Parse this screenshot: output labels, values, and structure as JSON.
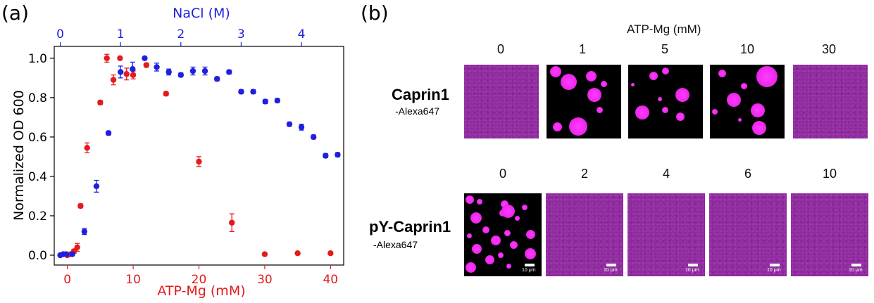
{
  "panel_a_label": "(a)",
  "panel_b_label": "(b)",
  "chart_data": {
    "type": "scatter",
    "title": "",
    "ylabel": "Normalized OD 600",
    "xlabel_bottom": "ATP-Mg (mM)",
    "xlabel_top": "NaCl (M)",
    "xlim_bottom": [
      -2,
      42
    ],
    "xlim_top": [
      -0.1,
      4.7
    ],
    "ylim": [
      -0.05,
      1.06
    ],
    "x_ticks_bottom": [
      0,
      10,
      20,
      30,
      40
    ],
    "x_ticks_top": [
      0,
      1,
      2,
      3,
      4
    ],
    "y_ticks": [
      0.0,
      0.2,
      0.4,
      0.6,
      0.8,
      1.0
    ],
    "y_tick_labels": [
      "0.0",
      "0.2",
      "0.4",
      "0.6",
      "0.8",
      "1.0"
    ],
    "grid": false,
    "series": [
      {
        "name": "ATP-Mg",
        "axis": "bottom",
        "color": "#e41a1c",
        "x": [
          0,
          0.5,
          1,
          1.5,
          2,
          3,
          5,
          6,
          7,
          8,
          9,
          10,
          12,
          15,
          20,
          25,
          30,
          35,
          40
        ],
        "y": [
          0.0,
          0.005,
          0.02,
          0.04,
          0.25,
          0.545,
          0.775,
          1.0,
          0.89,
          1.0,
          0.92,
          0.915,
          0.965,
          0.82,
          0.475,
          0.165,
          0.005,
          0.01,
          0.01
        ],
        "err": [
          0.005,
          0.005,
          0.01,
          0.02,
          0.01,
          0.025,
          0.01,
          0.02,
          0.025,
          0.005,
          0.03,
          0.02,
          0.01,
          0.01,
          0.025,
          0.045,
          0.005,
          0.005,
          0.005
        ]
      },
      {
        "name": "NaCl",
        "axis": "top",
        "color": "#1f1fe0",
        "x": [
          0,
          0.05,
          0.1,
          0.2,
          0.4,
          0.6,
          0.8,
          1.0,
          1.2,
          1.4,
          1.6,
          1.8,
          2.0,
          2.2,
          2.4,
          2.6,
          2.8,
          3.0,
          3.2,
          3.4,
          3.6,
          3.8,
          4.0,
          4.2,
          4.4,
          4.6
        ],
        "y": [
          0.0,
          0.005,
          0.005,
          0.005,
          0.12,
          0.35,
          0.62,
          0.93,
          0.945,
          1.0,
          0.955,
          0.93,
          0.915,
          0.935,
          0.935,
          0.895,
          0.93,
          0.83,
          0.83,
          0.78,
          0.785,
          0.665,
          0.65,
          0.6,
          0.505,
          0.51
        ],
        "err": [
          0.005,
          0.005,
          0.005,
          0.005,
          0.015,
          0.03,
          0.01,
          0.03,
          0.035,
          0.005,
          0.02,
          0.015,
          0.01,
          0.02,
          0.02,
          0.01,
          0.01,
          0.01,
          0.01,
          0.01,
          0.01,
          0.01,
          0.015,
          0.01,
          0.01,
          0.01
        ]
      }
    ]
  },
  "panel_b": {
    "title": "ATP-Mg (mM)",
    "row1": {
      "label": "Caprin1",
      "sub": "-Alexa647",
      "concentrations": [
        "0",
        "1",
        "5",
        "10",
        "30"
      ]
    },
    "row2": {
      "label": "pY-Caprin1",
      "sub": "-Alexa647",
      "concentrations": [
        "0",
        "2",
        "4",
        "6",
        "10"
      ]
    },
    "scale_bar_label": "10 μm",
    "colors": {
      "droplet": "#f22af0",
      "diffuse": "#8d2c9b",
      "background": "#000000"
    }
  }
}
